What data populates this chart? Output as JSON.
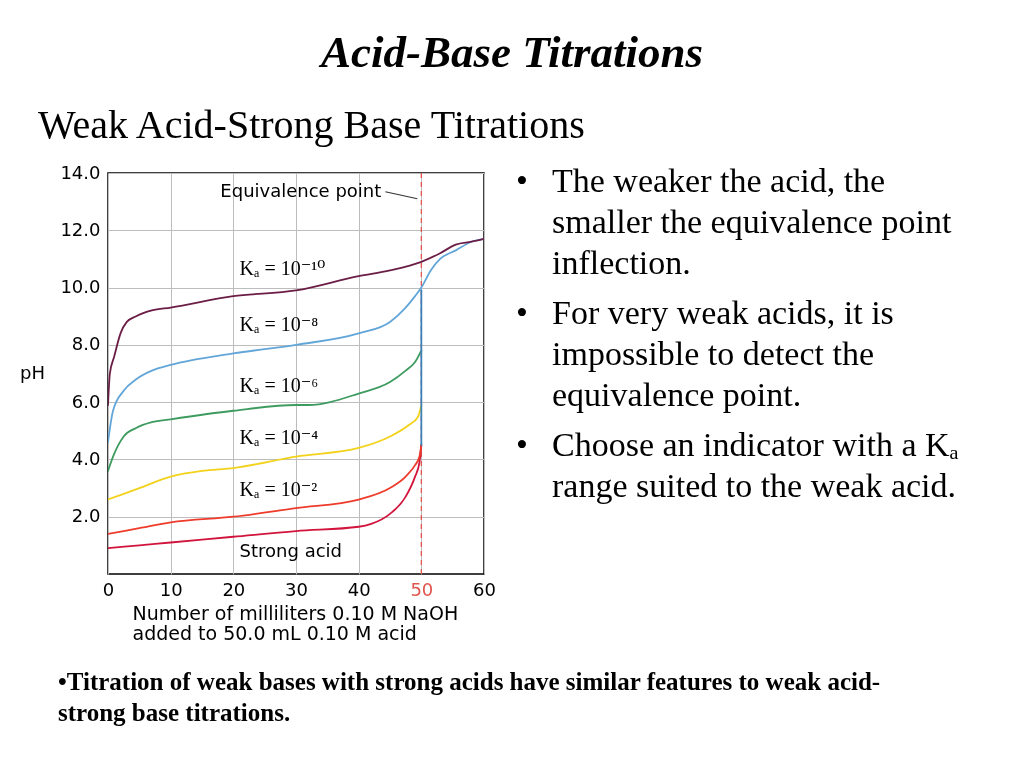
{
  "chart_data": {
    "type": "line",
    "title": "Acid-Base Titrations",
    "subtitle": "Weak Acid-Strong Base Titrations",
    "xlabel": "Number of milliliters 0.10 M NaOH\nadded to 50.0 mL 0.10 M acid",
    "ylabel": "pH",
    "xlim": [
      0,
      60
    ],
    "ylim": [
      0,
      14
    ],
    "xticks": [
      0,
      10,
      20,
      30,
      40,
      50,
      60
    ],
    "yticks": [
      {
        "value": 2,
        "label": "2.0"
      },
      {
        "value": 4,
        "label": "4.0"
      },
      {
        "value": 6,
        "label": "6.0"
      },
      {
        "value": 8,
        "label": "8.0"
      },
      {
        "value": 10,
        "label": "10.0"
      },
      {
        "value": 12,
        "label": "12.0"
      },
      {
        "value": 14,
        "label": "14.0"
      }
    ],
    "grid": true,
    "series": [
      {
        "name": "Strong acid",
        "color": "#d2143c",
        "x": [
          0,
          5,
          10,
          20,
          30,
          40,
          42,
          45,
          47.5,
          49,
          49.7,
          50
        ],
        "values": [
          0.9,
          1.0,
          1.1,
          1.3,
          1.5,
          1.65,
          1.75,
          2.1,
          2.7,
          3.4,
          3.9,
          4.5
        ]
      },
      {
        "name": "Kₐ = 10⁻²",
        "color": "#ee3b2b",
        "x": [
          0,
          5,
          10,
          20,
          30,
          40,
          45,
          47.5,
          49,
          49.7,
          50
        ],
        "values": [
          1.4,
          1.6,
          1.8,
          2.0,
          2.3,
          2.6,
          3.0,
          3.4,
          3.8,
          4.1,
          4.5
        ]
      },
      {
        "name": "Kₐ = 10⁻⁴",
        "color": "#f2d21b",
        "x": [
          0,
          5,
          10,
          15,
          20,
          30,
          40,
          45,
          48,
          49.5,
          50
        ],
        "values": [
          2.6,
          3.0,
          3.4,
          3.6,
          3.7,
          4.1,
          4.4,
          4.8,
          5.2,
          5.5,
          5.9
        ]
      },
      {
        "name": "Kₐ = 10⁻⁶",
        "color": "#3e9b5f",
        "x": [
          0,
          1,
          2.5,
          4.5,
          7,
          10,
          20,
          30,
          32,
          40,
          45,
          47.5,
          49,
          50
        ],
        "values": [
          3.6,
          4.2,
          4.8,
          5.1,
          5.3,
          5.4,
          5.7,
          5.9,
          5.9,
          6.3,
          6.7,
          7.1,
          7.4,
          7.8
        ]
      },
      {
        "color": "#3b7fb6",
        "x": [
          50,
          50
        ],
        "values": [
          4.5,
          9.9
        ]
      },
      {
        "name": "Kₐ = 10⁻⁸",
        "color": "#62a6d9",
        "x": [
          0,
          0.8,
          2.5,
          4.5,
          7,
          10,
          20,
          30,
          40,
          45,
          47.5,
          49,
          50,
          51.5,
          53,
          55.5,
          58,
          60
        ],
        "values": [
          4.6,
          5.7,
          6.4,
          6.8,
          7.1,
          7.3,
          7.7,
          8.0,
          8.4,
          8.8,
          9.3,
          9.7,
          10.0,
          10.6,
          11.0,
          11.3,
          11.6,
          11.7
        ]
      },
      {
        "name": "Kₐ = 10⁻¹⁰",
        "color": "#6b1d45",
        "x": [
          0,
          0.3,
          1,
          2,
          3,
          4.5,
          7,
          10,
          20,
          30,
          40,
          45,
          50,
          53,
          55.5,
          58,
          60
        ],
        "values": [
          5.9,
          7.0,
          7.6,
          8.4,
          8.8,
          9.0,
          9.2,
          9.3,
          9.7,
          9.9,
          10.4,
          10.6,
          10.9,
          11.2,
          11.5,
          11.6,
          11.7
        ]
      }
    ],
    "ref_lines": [
      {
        "axis": "x",
        "value": 50,
        "color": "#e0564e",
        "line_style": "dashed"
      }
    ],
    "annotations": [
      {
        "text": "Equivalence point",
        "x": 50,
        "y": 13.1
      },
      "• The weaker the acid, the smaller the equivalence point inflection.",
      "• For very weak acids, it is impossible to detect the equivalence point.",
      "• Choose an indicator with a Kₐ range suited to the weak acid.",
      "•Titration of weak bases with strong acids have similar features to weak acid-strong base titrations."
    ]
  }
}
